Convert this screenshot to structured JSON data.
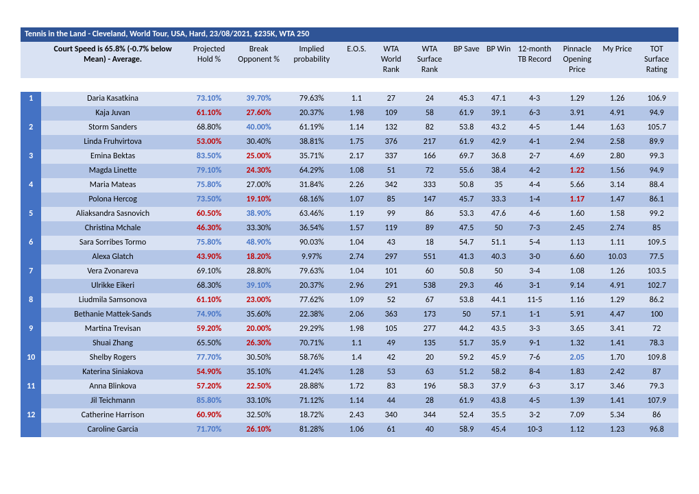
{
  "title": "Tennis in the Land - Cleveland, World Tour, USA, Hard, 23/08/2021, $235K, WTA 250",
  "headerNote": "Court Speed is 65.8% (-0.7% below Mean) - Average.",
  "columns": [
    "Projected Hold %",
    "Break Opponent %",
    "Implied probability",
    "E.O.S.",
    "WTA World Rank",
    "WTA Surface Rank",
    "BP Save",
    "BP Win",
    "12-month TB Record",
    "Pinnacle Opening Price",
    "My Price",
    "TOT Surface Rating"
  ],
  "colors": {
    "blue": "#4472c4",
    "red": "#c00000",
    "headerBg": "#2f5496",
    "lightBand": "#d9e2f3",
    "darkBand": "#b4c6e7"
  },
  "matches": [
    {
      "num": "1",
      "p1": {
        "name": "Daria Kasatkina",
        "hold": "73.10%",
        "holdC": "blue",
        "break": "39.70%",
        "breakC": "blue",
        "imp": "79.63%",
        "eos": "1.1",
        "wr": "27",
        "sr": "24",
        "bps": "45.3",
        "bpw": "47.1",
        "tb": "4-3",
        "pin": "1.29",
        "pinC": "",
        "my": "1.26",
        "tot": "106.9"
      },
      "p2": {
        "name": "Kaja Juvan",
        "hold": "61.10%",
        "holdC": "red",
        "break": "27.60%",
        "breakC": "red",
        "imp": "20.37%",
        "eos": "1.98",
        "wr": "109",
        "sr": "58",
        "bps": "61.9",
        "bpw": "39.1",
        "tb": "6-3",
        "pin": "3.91",
        "pinC": "",
        "my": "4.91",
        "tot": "94.9"
      }
    },
    {
      "num": "2",
      "p1": {
        "name": "Storm Sanders",
        "hold": "68.80%",
        "holdC": "",
        "break": "40.00%",
        "breakC": "blue",
        "imp": "61.19%",
        "eos": "1.14",
        "wr": "132",
        "sr": "82",
        "bps": "53.8",
        "bpw": "43.2",
        "tb": "4-5",
        "pin": "1.44",
        "pinC": "",
        "my": "1.63",
        "tot": "105.7"
      },
      "p2": {
        "name": "Linda Fruhvirtova",
        "hold": "53.00%",
        "holdC": "red",
        "break": "30.40%",
        "breakC": "",
        "imp": "38.81%",
        "eos": "1.75",
        "wr": "376",
        "sr": "217",
        "bps": "61.9",
        "bpw": "42.9",
        "tb": "4-1",
        "pin": "2.94",
        "pinC": "",
        "my": "2.58",
        "tot": "89.9"
      }
    },
    {
      "num": "3",
      "p1": {
        "name": "Emina Bektas",
        "hold": "83.50%",
        "holdC": "blue",
        "break": "25.00%",
        "breakC": "red",
        "imp": "35.71%",
        "eos": "2.17",
        "wr": "337",
        "sr": "166",
        "bps": "69.7",
        "bpw": "36.8",
        "tb": "2-7",
        "pin": "4.69",
        "pinC": "",
        "my": "2.80",
        "tot": "99.3"
      },
      "p2": {
        "name": "Magda Linette",
        "hold": "79.10%",
        "holdC": "blue",
        "break": "24.30%",
        "breakC": "red",
        "imp": "64.29%",
        "eos": "1.08",
        "wr": "51",
        "sr": "72",
        "bps": "55.6",
        "bpw": "38.4",
        "tb": "4-2",
        "pin": "1.22",
        "pinC": "red",
        "my": "1.56",
        "tot": "94.9"
      }
    },
    {
      "num": "4",
      "p1": {
        "name": "Maria Mateas",
        "hold": "75.80%",
        "holdC": "blue",
        "break": "27.00%",
        "breakC": "",
        "imp": "31.84%",
        "eos": "2.26",
        "wr": "342",
        "sr": "333",
        "bps": "50.8",
        "bpw": "35",
        "tb": "4-4",
        "pin": "5.66",
        "pinC": "",
        "my": "3.14",
        "tot": "88.4"
      },
      "p2": {
        "name": "Polona Hercog",
        "hold": "73.50%",
        "holdC": "blue",
        "break": "19.10%",
        "breakC": "red",
        "imp": "68.16%",
        "eos": "1.07",
        "wr": "85",
        "sr": "147",
        "bps": "45.7",
        "bpw": "33.3",
        "tb": "1-4",
        "pin": "1.17",
        "pinC": "red",
        "my": "1.47",
        "tot": "86.1"
      }
    },
    {
      "num": "5",
      "p1": {
        "name": "Aliaksandra Sasnovich",
        "hold": "60.50%",
        "holdC": "red",
        "break": "38.90%",
        "breakC": "blue",
        "imp": "63.46%",
        "eos": "1.19",
        "wr": "99",
        "sr": "86",
        "bps": "53.3",
        "bpw": "47.6",
        "tb": "4-6",
        "pin": "1.60",
        "pinC": "",
        "my": "1.58",
        "tot": "99.2"
      },
      "p2": {
        "name": "Christina Mchale",
        "hold": "46.30%",
        "holdC": "red",
        "break": "33.30%",
        "breakC": "",
        "imp": "36.54%",
        "eos": "1.57",
        "wr": "119",
        "sr": "89",
        "bps": "47.5",
        "bpw": "50",
        "tb": "7-3",
        "pin": "2.45",
        "pinC": "",
        "my": "2.74",
        "tot": "85"
      }
    },
    {
      "num": "6",
      "p1": {
        "name": "Sara Sorribes Tormo",
        "hold": "75.80%",
        "holdC": "blue",
        "break": "48.90%",
        "breakC": "blue",
        "imp": "90.03%",
        "eos": "1.04",
        "wr": "43",
        "sr": "18",
        "bps": "54.7",
        "bpw": "51.1",
        "tb": "5-4",
        "pin": "1.13",
        "pinC": "",
        "my": "1.11",
        "tot": "109.5"
      },
      "p2": {
        "name": "Alexa Glatch",
        "hold": "43.90%",
        "holdC": "red",
        "break": "18.20%",
        "breakC": "red",
        "imp": "9.97%",
        "eos": "2.74",
        "wr": "297",
        "sr": "551",
        "bps": "41.3",
        "bpw": "40.3",
        "tb": "3-0",
        "pin": "6.60",
        "pinC": "",
        "my": "10.03",
        "tot": "77.5"
      }
    },
    {
      "num": "7",
      "p1": {
        "name": "Vera Zvonareva",
        "hold": "69.10%",
        "holdC": "",
        "break": "28.80%",
        "breakC": "",
        "imp": "79.63%",
        "eos": "1.04",
        "wr": "101",
        "sr": "60",
        "bps": "50.8",
        "bpw": "50",
        "tb": "3-4",
        "pin": "1.08",
        "pinC": "",
        "my": "1.26",
        "tot": "103.5"
      },
      "p2": {
        "name": "Ulrikke Eikeri",
        "hold": "68.30%",
        "holdC": "",
        "break": "39.10%",
        "breakC": "blue",
        "imp": "20.37%",
        "eos": "2.96",
        "wr": "291",
        "sr": "538",
        "bps": "29.3",
        "bpw": "46",
        "tb": "3-1",
        "pin": "9.14",
        "pinC": "",
        "my": "4.91",
        "tot": "102.7"
      }
    },
    {
      "num": "8",
      "p1": {
        "name": "Liudmila Samsonova",
        "hold": "61.10%",
        "holdC": "red",
        "break": "23.00%",
        "breakC": "red",
        "imp": "77.62%",
        "eos": "1.09",
        "wr": "52",
        "sr": "67",
        "bps": "53.8",
        "bpw": "44.1",
        "tb": "11-5",
        "pin": "1.16",
        "pinC": "",
        "my": "1.29",
        "tot": "86.2"
      },
      "p2": {
        "name": "Bethanie Mattek-Sands",
        "hold": "74.90%",
        "holdC": "blue",
        "break": "35.60%",
        "breakC": "",
        "imp": "22.38%",
        "eos": "2.06",
        "wr": "363",
        "sr": "173",
        "bps": "50",
        "bpw": "57.1",
        "tb": "1-1",
        "pin": "5.91",
        "pinC": "",
        "my": "4.47",
        "tot": "100"
      }
    },
    {
      "num": "9",
      "p1": {
        "name": "Martina Trevisan",
        "hold": "59.20%",
        "holdC": "red",
        "break": "20.00%",
        "breakC": "red",
        "imp": "29.29%",
        "eos": "1.98",
        "wr": "105",
        "sr": "277",
        "bps": "44.2",
        "bpw": "43.5",
        "tb": "3-3",
        "pin": "3.65",
        "pinC": "",
        "my": "3.41",
        "tot": "72"
      },
      "p2": {
        "name": "Shuai Zhang",
        "hold": "65.50%",
        "holdC": "",
        "break": "26.30%",
        "breakC": "red",
        "imp": "70.71%",
        "eos": "1.1",
        "wr": "49",
        "sr": "135",
        "bps": "51.7",
        "bpw": "35.9",
        "tb": "9-1",
        "pin": "1.32",
        "pinC": "",
        "my": "1.41",
        "tot": "78.3"
      }
    },
    {
      "num": "10",
      "p1": {
        "name": "Shelby Rogers",
        "hold": "77.70%",
        "holdC": "blue",
        "break": "30.50%",
        "breakC": "",
        "imp": "58.76%",
        "eos": "1.4",
        "wr": "42",
        "sr": "20",
        "bps": "59.2",
        "bpw": "45.9",
        "tb": "7-6",
        "pin": "2.05",
        "pinC": "blue",
        "my": "1.70",
        "tot": "109.8"
      },
      "p2": {
        "name": "Katerina Siniakova",
        "hold": "54.90%",
        "holdC": "red",
        "break": "35.10%",
        "breakC": "",
        "imp": "41.24%",
        "eos": "1.28",
        "wr": "53",
        "sr": "63",
        "bps": "51.2",
        "bpw": "58.2",
        "tb": "8-4",
        "pin": "1.83",
        "pinC": "",
        "my": "2.42",
        "tot": "87"
      }
    },
    {
      "num": "11",
      "p1": {
        "name": "Anna Blinkova",
        "hold": "57.20%",
        "holdC": "red",
        "break": "22.50%",
        "breakC": "red",
        "imp": "28.88%",
        "eos": "1.72",
        "wr": "83",
        "sr": "196",
        "bps": "58.3",
        "bpw": "37.9",
        "tb": "6-3",
        "pin": "3.17",
        "pinC": "",
        "my": "3.46",
        "tot": "79.3"
      },
      "p2": {
        "name": "Jil Teichmann",
        "hold": "85.80%",
        "holdC": "blue",
        "break": "33.10%",
        "breakC": "",
        "imp": "71.12%",
        "eos": "1.14",
        "wr": "44",
        "sr": "28",
        "bps": "61.9",
        "bpw": "43.8",
        "tb": "4-5",
        "pin": "1.39",
        "pinC": "",
        "my": "1.41",
        "tot": "107.9"
      }
    },
    {
      "num": "12",
      "p1": {
        "name": "Catherine Harrison",
        "hold": "60.90%",
        "holdC": "red",
        "break": "32.50%",
        "breakC": "",
        "imp": "18.72%",
        "eos": "2.43",
        "wr": "340",
        "sr": "344",
        "bps": "52.4",
        "bpw": "35.5",
        "tb": "3-2",
        "pin": "7.09",
        "pinC": "",
        "my": "5.34",
        "tot": "86"
      },
      "p2": {
        "name": "Caroline Garcia",
        "hold": "71.70%",
        "holdC": "blue",
        "break": "26.10%",
        "breakC": "red",
        "imp": "81.28%",
        "eos": "1.06",
        "wr": "61",
        "sr": "40",
        "bps": "58.9",
        "bpw": "45.4",
        "tb": "10-3",
        "pin": "1.12",
        "pinC": "",
        "my": "1.23",
        "tot": "96.8"
      }
    }
  ]
}
